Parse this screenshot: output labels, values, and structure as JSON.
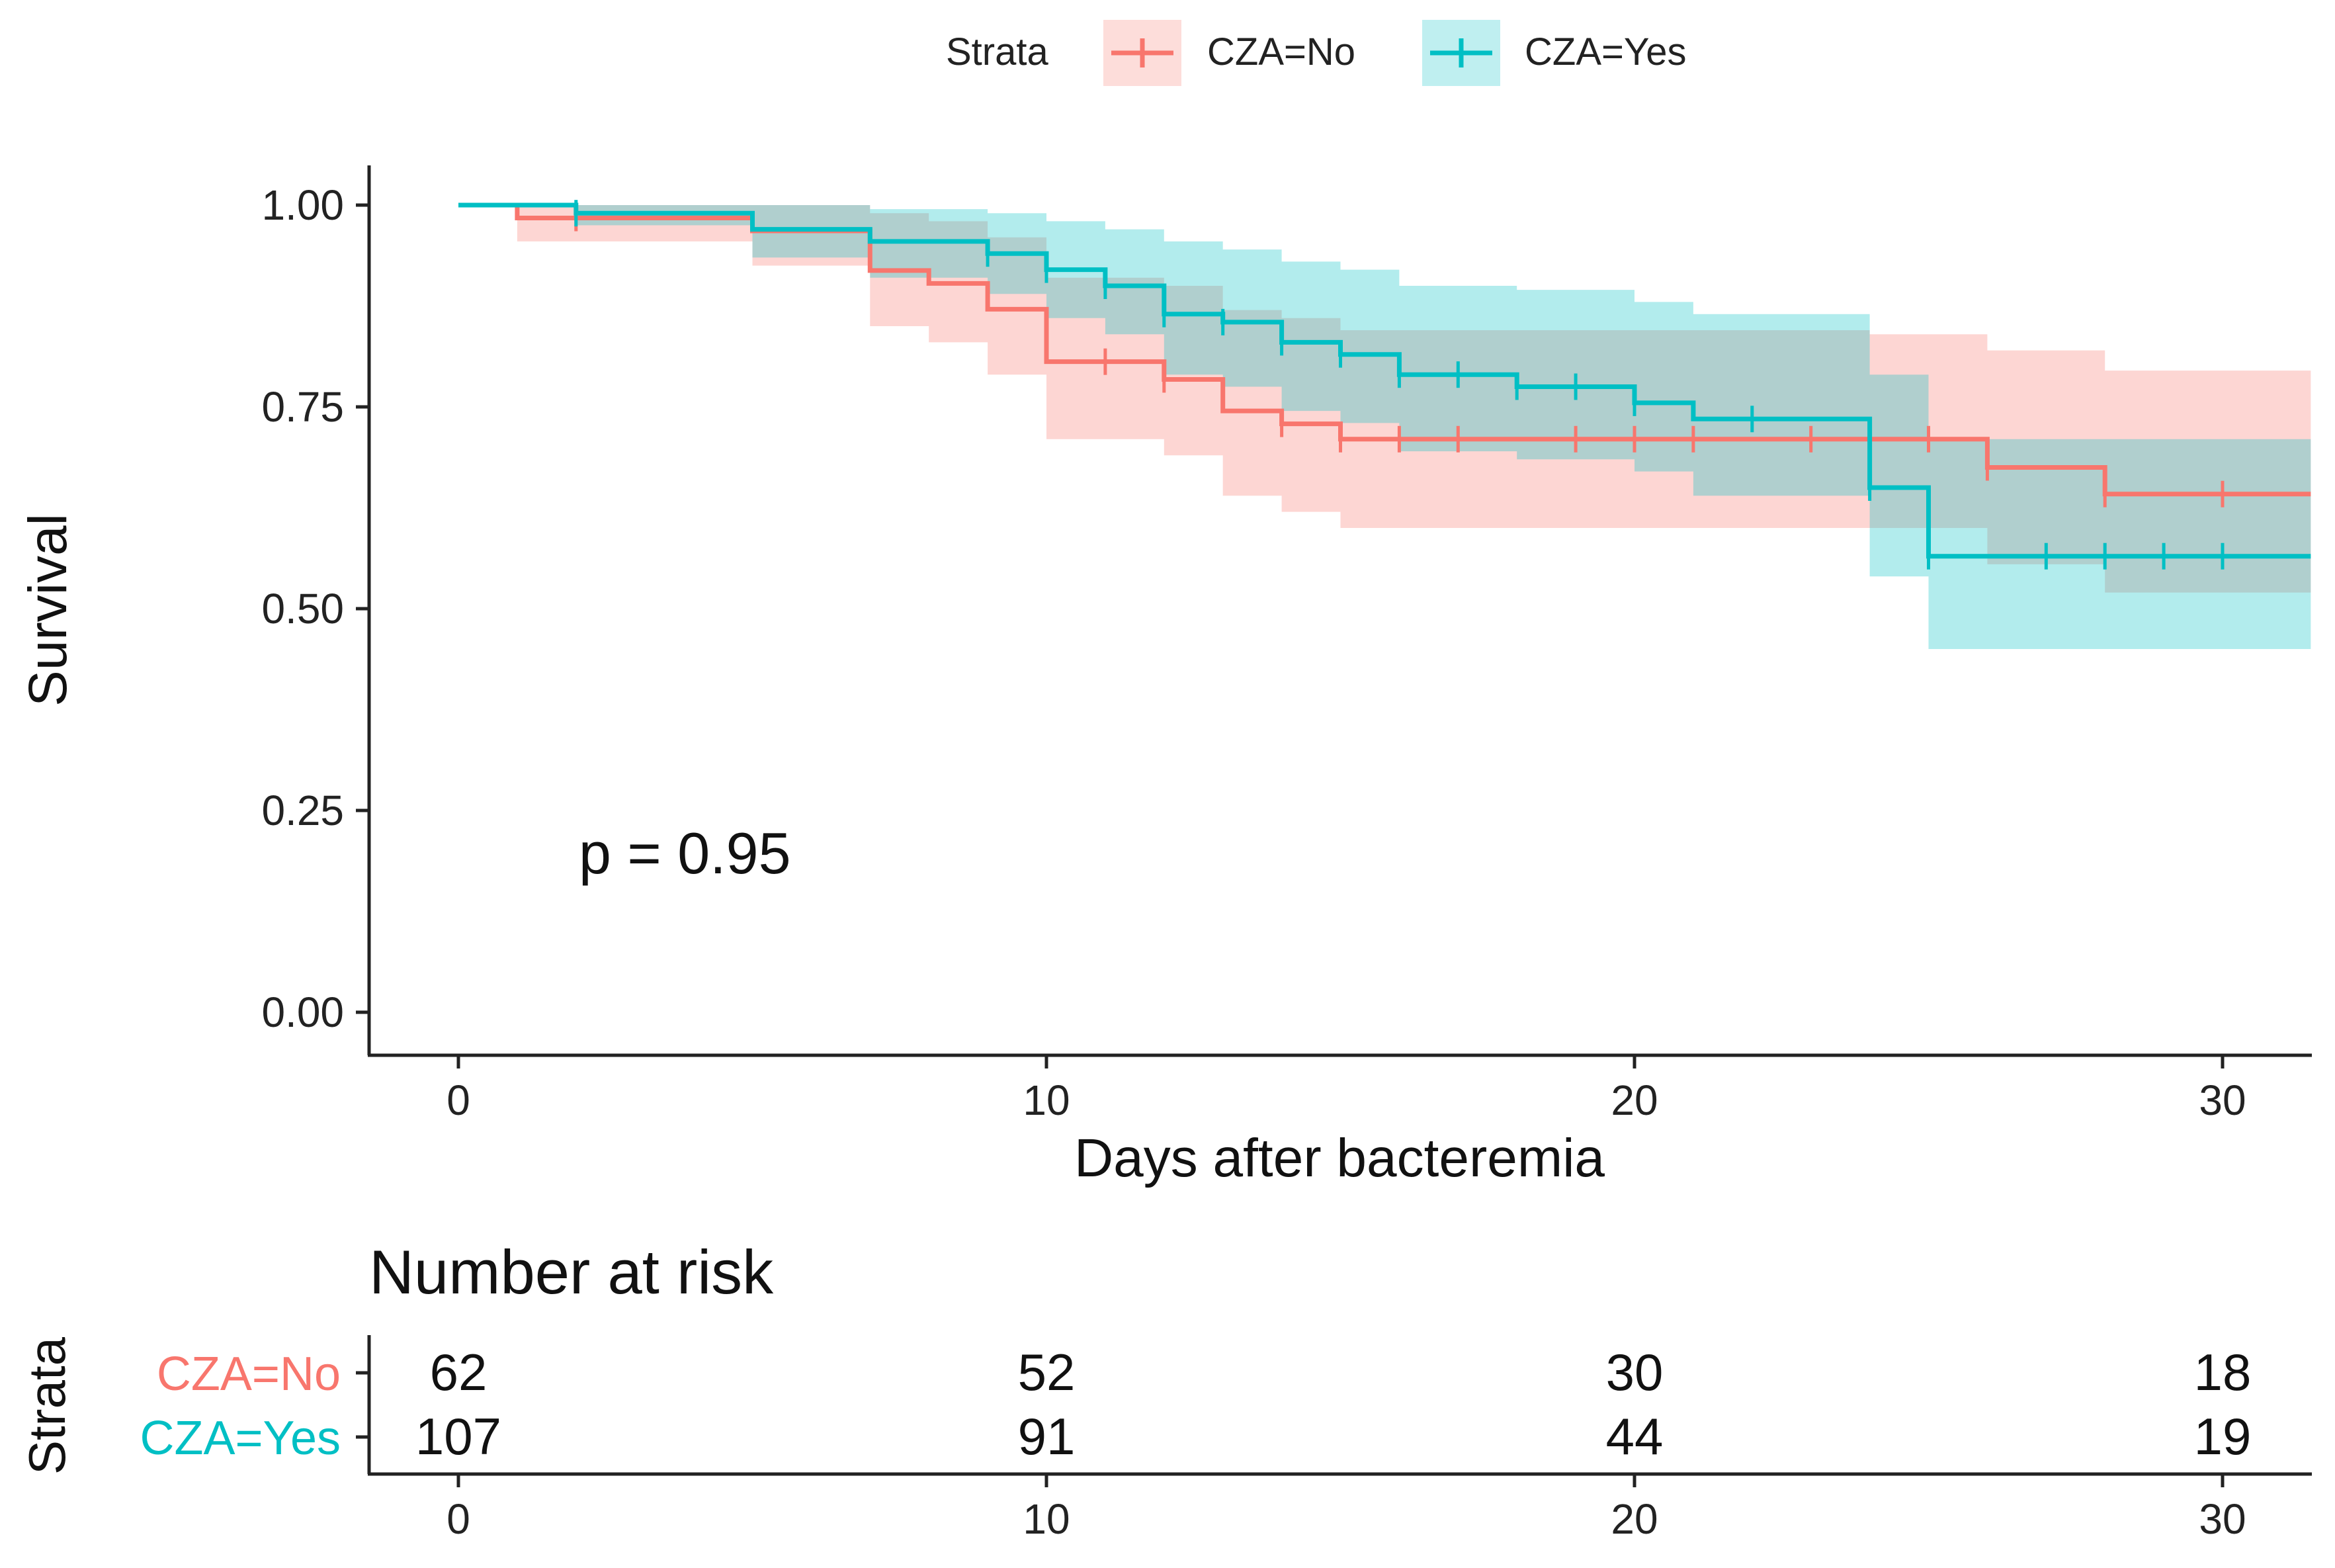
{
  "legend": {
    "title": "Strata",
    "entries": [
      {
        "label": "CZA=No",
        "color": "#F8766D"
      },
      {
        "label": "CZA=Yes",
        "color": "#00BFC4"
      }
    ]
  },
  "annotation": {
    "pvalue_text": "p = 0.95"
  },
  "chart_data": {
    "type": "line",
    "subtype": "kaplan-meier",
    "title": "",
    "xlabel": "Days after bacteremia",
    "ylabel": "Survival",
    "xlim": [
      -1.5,
      31.5
    ],
    "ylim": [
      -0.05,
      1.05
    ],
    "x_ticks": [
      0,
      10,
      20,
      30
    ],
    "y_ticks": [
      0.0,
      0.25,
      0.5,
      0.75,
      1.0
    ],
    "y_tick_labels": [
      "0.00",
      "0.25",
      "0.50",
      "0.75",
      "1.00"
    ],
    "series": [
      {
        "name": "CZA=No",
        "color": "#F8766D",
        "steps": [
          [
            0,
            1.0
          ],
          [
            1,
            0.984
          ],
          [
            5,
            0.968
          ],
          [
            7,
            0.919
          ],
          [
            8,
            0.903
          ],
          [
            9,
            0.871
          ],
          [
            10,
            0.806
          ],
          [
            12,
            0.784
          ],
          [
            13,
            0.745
          ],
          [
            14,
            0.729
          ],
          [
            15,
            0.71
          ],
          [
            26,
            0.675
          ],
          [
            28,
            0.642
          ],
          [
            31.5,
            0.642
          ]
        ],
        "ci_upper": [
          [
            0,
            1.0
          ],
          [
            1,
            1.0
          ],
          [
            5,
            1.0
          ],
          [
            7,
            0.99
          ],
          [
            8,
            0.98
          ],
          [
            9,
            0.96
          ],
          [
            10,
            0.91
          ],
          [
            12,
            0.9
          ],
          [
            13,
            0.87
          ],
          [
            14,
            0.86
          ],
          [
            15,
            0.845
          ],
          [
            24,
            0.84
          ],
          [
            26,
            0.82
          ],
          [
            28,
            0.795
          ],
          [
            31.5,
            0.795
          ]
        ],
        "ci_lower": [
          [
            0,
            1.0
          ],
          [
            1,
            0.955
          ],
          [
            5,
            0.925
          ],
          [
            7,
            0.85
          ],
          [
            8,
            0.83
          ],
          [
            9,
            0.79
          ],
          [
            10,
            0.71
          ],
          [
            12,
            0.69
          ],
          [
            13,
            0.64
          ],
          [
            14,
            0.62
          ],
          [
            15,
            0.6
          ],
          [
            26,
            0.555
          ],
          [
            28,
            0.52
          ],
          [
            31.5,
            0.52
          ]
        ],
        "censor_x": [
          2,
          11,
          12,
          14,
          15,
          16,
          17,
          19,
          20,
          21,
          23,
          25,
          26,
          28,
          30
        ]
      },
      {
        "name": "CZA=Yes",
        "color": "#00BFC4",
        "steps": [
          [
            0,
            1.0
          ],
          [
            2,
            0.99
          ],
          [
            5,
            0.97
          ],
          [
            7,
            0.955
          ],
          [
            9,
            0.94
          ],
          [
            10,
            0.92
          ],
          [
            11,
            0.9
          ],
          [
            12,
            0.865
          ],
          [
            13,
            0.855
          ],
          [
            14,
            0.83
          ],
          [
            15,
            0.815
          ],
          [
            16,
            0.79
          ],
          [
            18,
            0.775
          ],
          [
            20,
            0.755
          ],
          [
            21,
            0.735
          ],
          [
            24,
            0.65
          ],
          [
            25,
            0.565
          ],
          [
            31.5,
            0.565
          ]
        ],
        "ci_upper": [
          [
            0,
            1.0
          ],
          [
            5,
            1.0
          ],
          [
            7,
            0.995
          ],
          [
            9,
            0.99
          ],
          [
            10,
            0.98
          ],
          [
            11,
            0.97
          ],
          [
            12,
            0.955
          ],
          [
            13,
            0.945
          ],
          [
            14,
            0.93
          ],
          [
            15,
            0.92
          ],
          [
            16,
            0.9
          ],
          [
            18,
            0.895
          ],
          [
            20,
            0.88
          ],
          [
            21,
            0.865
          ],
          [
            24,
            0.79
          ],
          [
            25,
            0.71
          ],
          [
            31.5,
            0.71
          ]
        ],
        "ci_lower": [
          [
            0,
            1.0
          ],
          [
            2,
            0.975
          ],
          [
            5,
            0.935
          ],
          [
            7,
            0.91
          ],
          [
            9,
            0.89
          ],
          [
            10,
            0.86
          ],
          [
            11,
            0.84
          ],
          [
            12,
            0.79
          ],
          [
            13,
            0.775
          ],
          [
            14,
            0.745
          ],
          [
            15,
            0.73
          ],
          [
            16,
            0.695
          ],
          [
            18,
            0.685
          ],
          [
            20,
            0.67
          ],
          [
            21,
            0.64
          ],
          [
            24,
            0.54
          ],
          [
            25,
            0.45
          ],
          [
            31.5,
            0.45
          ]
        ],
        "censor_x": [
          2,
          9,
          10,
          11,
          12,
          13,
          14,
          15,
          16,
          17,
          18,
          19,
          20,
          22,
          24,
          25,
          27,
          28,
          29,
          30
        ]
      }
    ],
    "risk_table": {
      "title": "Number at risk",
      "ylabel": "Strata",
      "times": [
        0,
        10,
        20,
        30
      ],
      "x_ticks": [
        0,
        10,
        20,
        30
      ],
      "rows": [
        {
          "label": "CZA=No",
          "color": "#F8766D",
          "counts": [
            62,
            52,
            30,
            18
          ]
        },
        {
          "label": "CZA=Yes",
          "color": "#00BFC4",
          "counts": [
            107,
            91,
            44,
            19
          ]
        }
      ]
    }
  }
}
